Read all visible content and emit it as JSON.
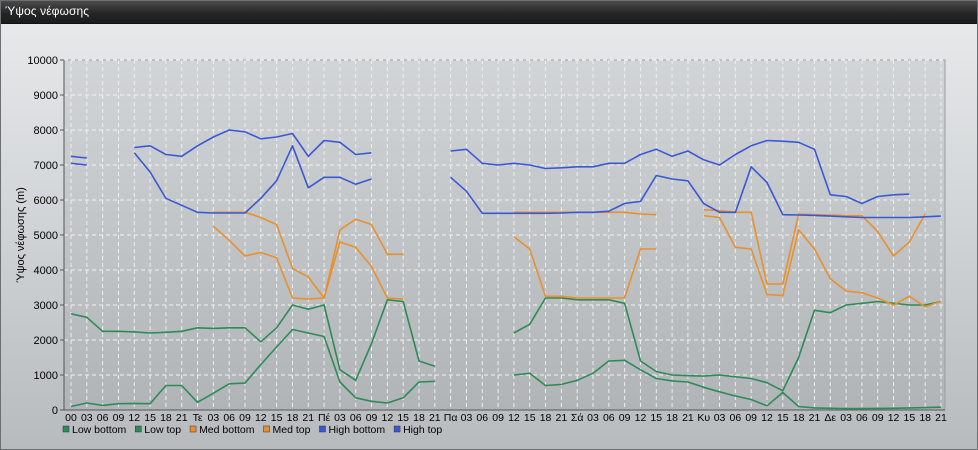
{
  "window": {
    "title": "Ύψος νέφωσης"
  },
  "chart_data": {
    "type": "line",
    "title": "",
    "ylabel": "Ύψος νέφωσης (m)",
    "xlabel": "",
    "ylim": [
      0,
      10000
    ],
    "yticks": [
      0,
      1000,
      2000,
      3000,
      4000,
      5000,
      6000,
      7000,
      8000,
      9000,
      10000
    ],
    "grid": true,
    "legend_position": "bottom-left",
    "x_tick_labels": [
      "00",
      "03",
      "06",
      "09",
      "12",
      "15",
      "18",
      "21",
      "Τε",
      "03",
      "06",
      "09",
      "12",
      "15",
      "18",
      "21",
      "Πέ",
      "03",
      "06",
      "09",
      "12",
      "15",
      "18",
      "21",
      "Πα",
      "03",
      "06",
      "09",
      "12",
      "15",
      "18",
      "21",
      "Σά",
      "03",
      "06",
      "09",
      "12",
      "15",
      "18",
      "21",
      "Κυ",
      "03",
      "06",
      "09",
      "12",
      "15",
      "18",
      "21",
      "Δε",
      "03",
      "06",
      "09",
      "12",
      "15",
      "18",
      "21"
    ],
    "series": [
      {
        "name": "Low bottom",
        "color": "#2e8b57",
        "values": [
          100,
          200,
          130,
          180,
          190,
          180,
          700,
          700,
          220,
          480,
          750,
          770,
          1300,
          1800,
          2300,
          2200,
          2100,
          800,
          350,
          250,
          200,
          350,
          800,
          820,
          null,
          null,
          null,
          null,
          1000,
          1050,
          700,
          730,
          850,
          1050,
          1400,
          1420,
          1150,
          900,
          830,
          800,
          650,
          520,
          400,
          300,
          120,
          500,
          100,
          60,
          50,
          40,
          40,
          45,
          50,
          60,
          70,
          80
        ]
      },
      {
        "name": "Low top",
        "color": "#2e8b57",
        "values": [
          2750,
          2650,
          2250,
          2250,
          2230,
          2200,
          2220,
          2250,
          2350,
          2330,
          2350,
          2350,
          1950,
          2350,
          3000,
          2880,
          3000,
          1150,
          850,
          1900,
          3150,
          3100,
          1400,
          1250,
          null,
          null,
          null,
          null,
          2200,
          2450,
          3200,
          3200,
          3150,
          3150,
          3150,
          3050,
          1400,
          1100,
          1000,
          980,
          970,
          1000,
          950,
          900,
          780,
          550,
          1500,
          2850,
          2780,
          3000,
          3050,
          3100,
          3050,
          3000,
          3000,
          3100
        ]
      },
      {
        "name": "Med bottom",
        "color": "#e8902e",
        "values": [
          null,
          null,
          null,
          null,
          null,
          null,
          null,
          null,
          null,
          5250,
          4850,
          4400,
          4500,
          4350,
          3200,
          3170,
          3200,
          4800,
          4650,
          4100,
          3200,
          3170,
          null,
          null,
          null,
          null,
          null,
          null,
          4950,
          4600,
          3250,
          3250,
          3200,
          3200,
          3200,
          3200,
          4600,
          4600,
          null,
          null,
          5550,
          5500,
          4650,
          4600,
          3300,
          3270,
          5150,
          4600,
          3750,
          3400,
          3350,
          3200,
          3000,
          3250,
          2950,
          3100
        ]
      },
      {
        "name": "Med top",
        "color": "#e8902e",
        "values": [
          null,
          null,
          null,
          null,
          null,
          null,
          null,
          null,
          null,
          5650,
          5650,
          5650,
          5500,
          5300,
          4050,
          3800,
          3200,
          5150,
          5450,
          5300,
          4450,
          4450,
          null,
          null,
          null,
          null,
          null,
          null,
          5650,
          5650,
          5650,
          5650,
          5650,
          5650,
          5650,
          5650,
          5600,
          5580,
          null,
          null,
          5720,
          5700,
          5650,
          5650,
          3600,
          3600,
          5600,
          5580,
          5570,
          5550,
          5550,
          5100,
          4400,
          4800,
          5600,
          null
        ]
      },
      {
        "name": "High bottom",
        "color": "#3a58d6",
        "values": [
          7050,
          7000,
          null,
          null,
          7350,
          6800,
          6050,
          5850,
          5650,
          5630,
          5630,
          5630,
          6050,
          6550,
          7550,
          6350,
          6650,
          6650,
          6450,
          6600,
          null,
          null,
          null,
          null,
          6650,
          6250,
          5620,
          5620,
          5620,
          5620,
          5620,
          5630,
          5650,
          5650,
          5680,
          5900,
          5960,
          6700,
          6600,
          6550,
          5900,
          5650,
          5650,
          6950,
          6500,
          5580,
          5570,
          5560,
          5540,
          5520,
          5500,
          5500,
          5500,
          5500,
          5520,
          5540
        ]
      },
      {
        "name": "High top",
        "color": "#3a58d6",
        "values": [
          7250,
          7200,
          null,
          null,
          7500,
          7550,
          7300,
          7250,
          7550,
          7800,
          8000,
          7950,
          7750,
          7800,
          7900,
          7250,
          7700,
          7650,
          7300,
          7350,
          null,
          null,
          null,
          null,
          7400,
          7450,
          7050,
          7000,
          7050,
          7000,
          6900,
          6920,
          6950,
          6950,
          7050,
          7050,
          7300,
          7450,
          7250,
          7400,
          7150,
          7000,
          7300,
          7550,
          7700,
          7680,
          7650,
          7450,
          6150,
          6100,
          5900,
          6100,
          6150,
          6170,
          null,
          null
        ]
      }
    ]
  }
}
